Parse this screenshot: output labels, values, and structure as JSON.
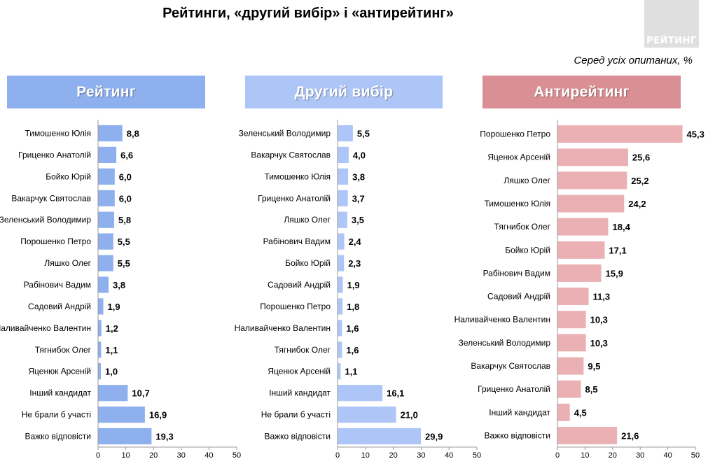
{
  "title": "Рейтинги, «другий вибір» і «антирейтинг»",
  "logo_text": "РЕЙТИНГ",
  "subtitle": "Серед усіх опитаних, %",
  "chart_data": [
    {
      "type": "bar",
      "orientation": "horizontal",
      "title": "Рейтинг",
      "header_color": "#8fb0ef",
      "bar_color": "#8fb0ef",
      "xlim": [
        0,
        50
      ],
      "xticks": [
        0,
        10,
        20,
        30,
        40,
        50
      ],
      "categories": [
        "Тимошенко Юлія",
        "Гриценко Анатолій",
        "Бойко Юрій",
        "Вакарчук Святослав",
        "Зеленський Володимир",
        "Порошенко Петро",
        "Ляшко Олег",
        "Рабінович Вадим",
        "Садовий Андрій",
        "Наливайченко Валентин",
        "Тягнибок Олег",
        "Яценюк Арсеній",
        "Інший кандидат",
        "Не брали б участі",
        "Важко відповісти"
      ],
      "values": [
        8.8,
        6.6,
        6.0,
        6.0,
        5.8,
        5.5,
        5.5,
        3.8,
        1.9,
        1.2,
        1.1,
        1.0,
        10.7,
        16.9,
        19.3
      ],
      "labels": [
        "8,8",
        "6,6",
        "6,0",
        "6,0",
        "5,8",
        "5,5",
        "5,5",
        "3,8",
        "1,9",
        "1,2",
        "1,1",
        "1,0",
        "10,7",
        "16,9",
        "19,3"
      ]
    },
    {
      "type": "bar",
      "orientation": "horizontal",
      "title": "Другий вибір",
      "header_color": "#aec6f7",
      "bar_color": "#aec6f7",
      "xlim": [
        0,
        50
      ],
      "xticks": [
        0,
        10,
        20,
        30,
        40,
        50
      ],
      "categories": [
        "Зеленський Володимир",
        "Вакарчук Святослав",
        "Тимошенко Юлія",
        "Гриценко Анатолій",
        "Ляшко Олег",
        "Рабінович Вадим",
        "Бойко Юрій",
        "Садовий Андрій",
        "Порошенко Петро",
        "Наливайченко Валентин",
        "Тягнибок Олег",
        "Яценюк Арсеній",
        "Інший кандидат",
        "Не брали б участі",
        "Важко відповісти"
      ],
      "values": [
        5.5,
        4.0,
        3.8,
        3.7,
        3.5,
        2.4,
        2.3,
        1.9,
        1.8,
        1.6,
        1.6,
        1.1,
        16.1,
        21.0,
        29.9
      ],
      "labels": [
        "5,5",
        "4,0",
        "3,8",
        "3,7",
        "3,5",
        "2,4",
        "2,3",
        "1,9",
        "1,8",
        "1,6",
        "1,6",
        "1,1",
        "16,1",
        "21,0",
        "29,9"
      ]
    },
    {
      "type": "bar",
      "orientation": "horizontal",
      "title": "Антирейтинг",
      "header_color": "#d98f93",
      "bar_color": "#eab0b3",
      "xlim": [
        0,
        50
      ],
      "xticks": [
        0,
        10,
        20,
        30,
        40,
        50
      ],
      "categories": [
        "Порошенко Петро",
        "Яценюк Арсеній",
        "Ляшко Олег",
        "Тимошенко Юлія",
        "Тягнибок Олег",
        "Бойко Юрій",
        "Рабінович Вадим",
        "Садовий Андрій",
        "Наливайченко Валентин",
        "Зеленський Володимир",
        "Вакарчук Святослав",
        "Гриценко Анатолій",
        "Інший кандидат",
        "Важко відповісти"
      ],
      "values": [
        45.3,
        25.6,
        25.2,
        24.2,
        18.4,
        17.1,
        15.9,
        11.3,
        10.3,
        10.3,
        9.5,
        8.5,
        4.5,
        21.6
      ],
      "labels": [
        "45,3",
        "25,6",
        "25,2",
        "24,2",
        "18,4",
        "17,1",
        "15,9",
        "11,3",
        "10,3",
        "10,3",
        "9,5",
        "8,5",
        "4,5",
        "21,6"
      ]
    }
  ]
}
